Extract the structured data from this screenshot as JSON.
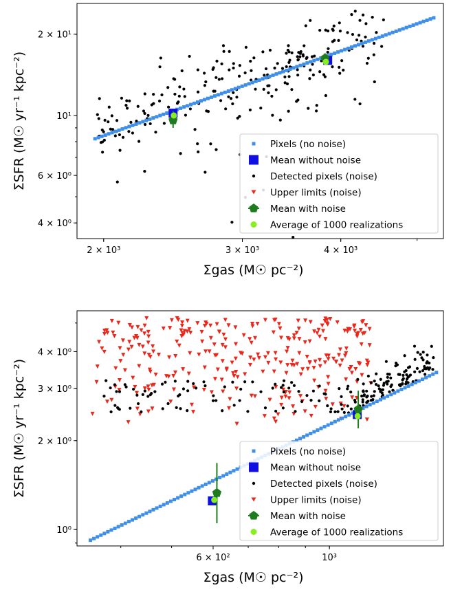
{
  "chart_data": [
    {
      "type": "scatter",
      "title": "",
      "xlabel": "Σgas (M☉ pc⁻²)",
      "ylabel": "ΣSFR (M☉ yr⁻¹ kpc⁻²)",
      "xscale": "log",
      "yscale": "log",
      "xlim": [
        1850,
        5400
      ],
      "ylim": [
        3.5,
        26
      ],
      "xticks": [
        {
          "value": 2000,
          "label": "2 × 10³"
        },
        {
          "value": 3000,
          "label": "3 × 10³"
        },
        {
          "value": 4000,
          "label": "4 × 10³"
        }
      ],
      "yticks": [
        {
          "value": 4,
          "label": "4 × 10⁰"
        },
        {
          "value": 6,
          "label": "6 × 10⁰"
        },
        {
          "value": 10,
          "label": "10¹"
        },
        {
          "value": 20,
          "label": "2 × 10¹"
        }
      ],
      "legend_position": "lower-right",
      "grid": false,
      "series": [
        {
          "name": "Pixels (no noise)",
          "marker": "square",
          "color": "#3f8fe8",
          "line_from": [
            1950,
            8.2
          ],
          "line_to": [
            5250,
            23.0
          ],
          "points": 100
        },
        {
          "name": "Mean without noise",
          "marker": "big-square",
          "color": "#1010e0",
          "points_xy": [
            [
              2450,
              10.2
            ],
            [
              3850,
              16.0
            ]
          ]
        },
        {
          "name": "Detected pixels (noise)",
          "marker": "dot",
          "color": "#000000",
          "band_around_line": true,
          "count": 240
        },
        {
          "name": "Upper limits (noise)",
          "marker": "triangle-down",
          "color": "#e8281c",
          "count": 0
        },
        {
          "name": "Mean with noise",
          "marker": "pentagon",
          "color": "#1e7b1e",
          "points_xy": [
            [
              2450,
              9.6
            ],
            [
              3820,
              16.3
            ]
          ],
          "yerr": [
            [
              9.0,
              10.4
            ],
            [
              15.4,
              17.0
            ]
          ]
        },
        {
          "name": "Average of 1000 realizations",
          "marker": "circle",
          "color": "#88ee22",
          "points_xy": [
            [
              2455,
              10.0
            ],
            [
              3830,
              15.8
            ]
          ]
        }
      ]
    },
    {
      "type": "scatter",
      "title": "",
      "xlabel": "Σgas (M☉ pc⁻²)",
      "ylabel": "ΣSFR (M☉ yr⁻¹ kpc⁻²)",
      "xscale": "log",
      "yscale": "log",
      "xlim": [
        330,
        1650
      ],
      "ylim": [
        0.88,
        5.5
      ],
      "xticks": [
        {
          "value": 600,
          "label": "6 × 10²"
        },
        {
          "value": 1000,
          "label": "10³"
        }
      ],
      "yticks": [
        {
          "value": 1,
          "label": "10⁰"
        },
        {
          "value": 2,
          "label": "2 × 10⁰"
        },
        {
          "value": 3,
          "label": "3 × 10⁰"
        },
        {
          "value": 4,
          "label": "4 × 10⁰"
        }
      ],
      "legend_position": "lower-right",
      "grid": false,
      "series": [
        {
          "name": "Pixels (no noise)",
          "marker": "square",
          "color": "#3f8fe8",
          "line_from": [
            350,
            0.92
          ],
          "line_to": [
            1600,
            3.4
          ],
          "points": 100
        },
        {
          "name": "Mean without noise",
          "marker": "big-square",
          "color": "#1010e0",
          "points_xy": [
            [
              598,
              1.25
            ],
            [
              1130,
              2.45
            ]
          ]
        },
        {
          "name": "Detected pixels (noise)",
          "marker": "dot",
          "color": "#000000",
          "count": 200
        },
        {
          "name": "Upper limits (noise)",
          "marker": "triangle-down",
          "color": "#e8281c",
          "count": 300,
          "xrange": [
            350,
            1200
          ],
          "yrange": [
            2.2,
            5.2
          ]
        },
        {
          "name": "Mean with noise",
          "marker": "pentagon",
          "color": "#1e7b1e",
          "points_xy": [
            [
              610,
              1.33
            ],
            [
              1135,
              2.55
            ]
          ],
          "yerr": [
            [
              1.05,
              1.68
            ],
            [
              2.2,
              2.95
            ]
          ]
        },
        {
          "name": "Average of 1000 realizations",
          "marker": "circle",
          "color": "#88ee22",
          "points_xy": [
            [
              603,
              1.26
            ],
            [
              1132,
              2.42
            ]
          ]
        }
      ]
    }
  ]
}
